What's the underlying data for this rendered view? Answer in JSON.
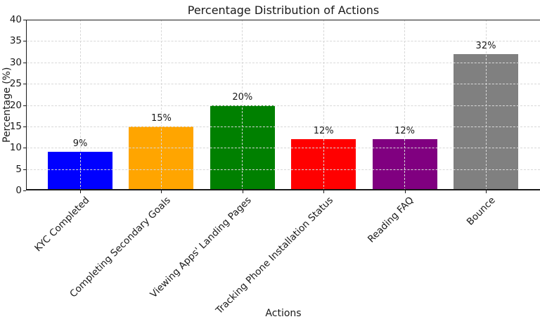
{
  "chart_data": {
    "type": "bar",
    "title": "Percentage Distribution of Actions",
    "xlabel": "Actions",
    "ylabel": "Percentage (%)",
    "categories": [
      "KYC Completed",
      "Completing Secondary Goals",
      "Viewing Apps' Landing Pages",
      "Tracking Phone Installation Status",
      "Reading FAQ",
      "Bounce"
    ],
    "values": [
      9,
      15,
      20,
      12,
      12,
      32
    ],
    "value_labels": [
      "9%",
      "15%",
      "20%",
      "12%",
      "12%",
      "32%"
    ],
    "bar_colors": [
      "#0000ff",
      "#ffa500",
      "#008000",
      "#ff0000",
      "#800080",
      "#808080"
    ],
    "yticks": [
      0,
      5,
      10,
      15,
      20,
      25,
      30,
      35,
      40
    ],
    "ylim": [
      0,
      40
    ],
    "grid": "dashed light-gray gridlines on both axes, drawn above bars",
    "legend": "none",
    "x_tick_rotation_deg": 45,
    "text_color": "#1a1a1a",
    "background_color": "#ffffff"
  }
}
